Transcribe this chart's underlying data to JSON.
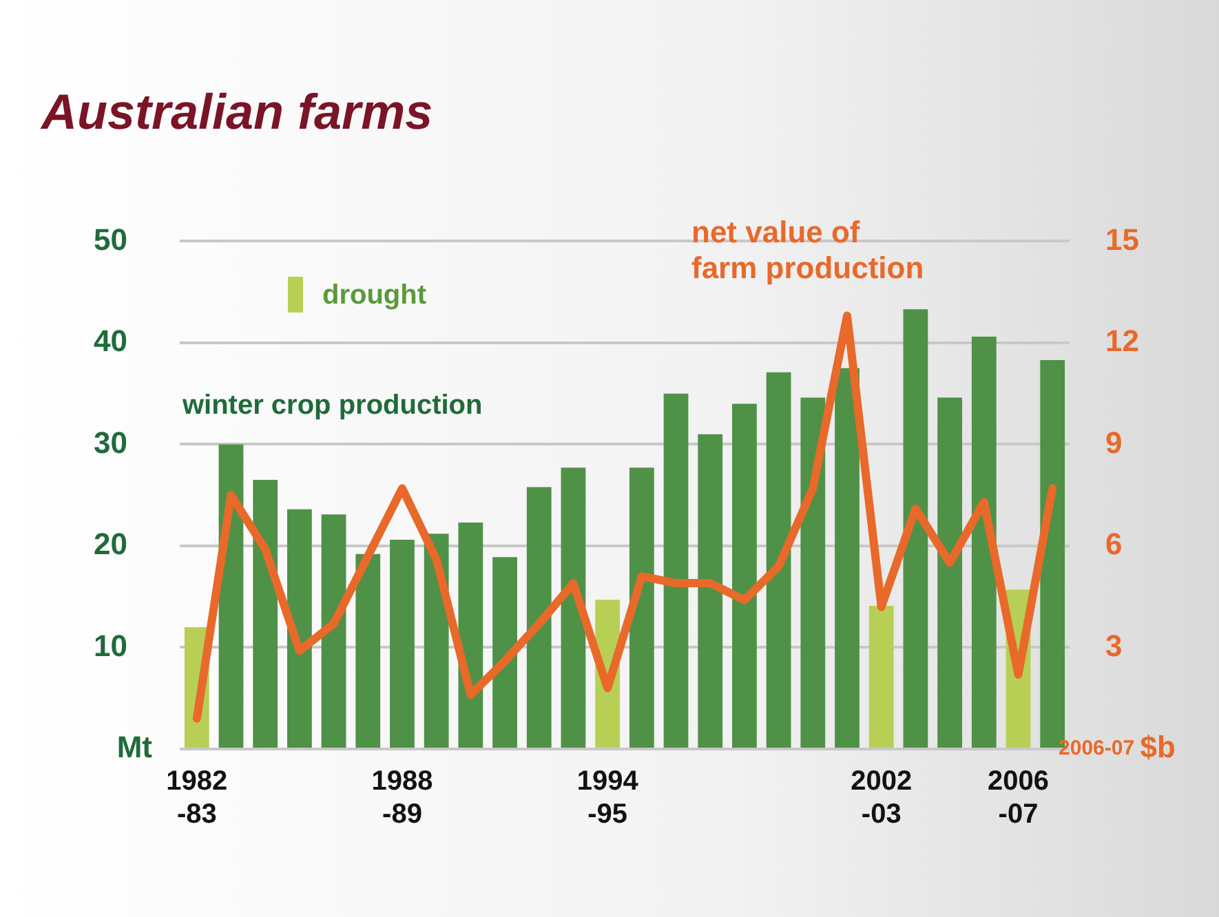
{
  "chart_data": {
    "type": "bar",
    "title": "Australian farms",
    "categories": [
      "1982\n-83",
      null,
      null,
      null,
      null,
      null,
      "1988\n-89",
      null,
      null,
      null,
      null,
      null,
      "1994\n-95",
      null,
      null,
      null,
      null,
      null,
      null,
      null,
      "2002\n-03",
      null,
      null,
      null,
      "2006\n-07",
      null
    ],
    "series": [
      {
        "name": "winter crop production",
        "colors": [
          "#b8cf55",
          "#4f9147",
          "#4f9147",
          "#4f9147",
          "#4f9147",
          "#4f9147",
          "#4f9147",
          "#4f9147",
          "#4f9147",
          "#4f9147",
          "#4f9147",
          "#4f9147",
          "#b8cf55",
          "#4f9147",
          "#4f9147",
          "#4f9147",
          "#4f9147",
          "#4f9147",
          "#4f9147",
          "#4f9147",
          "#b8cf55",
          "#4f9147",
          "#4f9147",
          "#4f9147",
          "#b8cf55",
          "#4f9147"
        ],
        "values": [
          12.0,
          30.0,
          26.5,
          23.6,
          23.1,
          19.2,
          20.6,
          21.2,
          22.3,
          18.9,
          25.8,
          27.7,
          14.7,
          27.7,
          35.0,
          31.0,
          34.0,
          37.1,
          34.6,
          37.5,
          14.1,
          43.3,
          34.6,
          40.6,
          15.7,
          38.3
        ]
      },
      {
        "name": "net value of farm production",
        "type": "line",
        "axis": "y2",
        "color": "#e8692a",
        "values": [
          0.9,
          7.5,
          5.9,
          2.9,
          3.7,
          5.7,
          7.7,
          5.6,
          1.6,
          2.6,
          3.7,
          4.9,
          1.8,
          5.1,
          4.9,
          4.9,
          4.4,
          5.4,
          7.7,
          12.8,
          4.2,
          7.1,
          5.5,
          7.3,
          2.2,
          7.7
        ]
      }
    ],
    "ylabel": "Mt",
    "y2label": "2006-07 $b",
    "ylim": [
      0,
      50
    ],
    "yticks": [
      {
        "value": 0,
        "label": null
      },
      10,
      20,
      30,
      40,
      50
    ],
    "y2lim": [
      0,
      15
    ],
    "y2ticks": [
      {
        "value": 0,
        "label": null
      },
      3,
      6,
      9,
      12,
      15
    ],
    "annotations": [
      "drought"
    ],
    "grid": "y",
    "legend": false,
    "marker": "none"
  }
}
